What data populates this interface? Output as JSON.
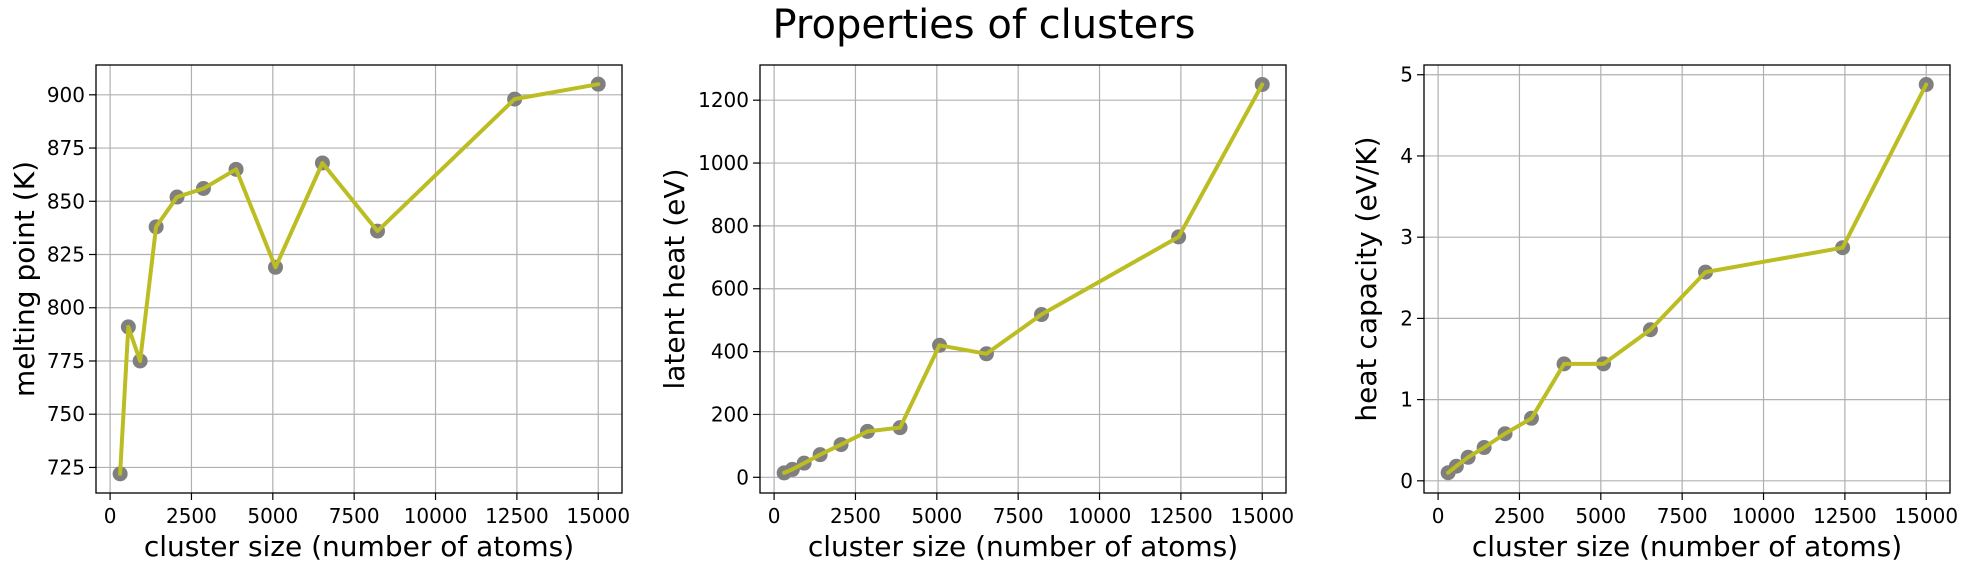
{
  "figure": {
    "title": "Properties of clusters"
  },
  "colors": {
    "line": "#bcbd22",
    "marker": "#7f7f7f",
    "grid": "#b0b0b0",
    "axes": "#000000"
  },
  "chart_data": [
    {
      "type": "line",
      "title": "",
      "xlabel": "cluster size (number of atoms)",
      "ylabel": "melting point (K)",
      "xlim": [
        -433,
        15730
      ],
      "ylim": [
        713,
        914
      ],
      "xticks": [
        0,
        2500,
        5000,
        7500,
        10000,
        12500,
        15000
      ],
      "xtick_labels": [
        "0",
        "2500",
        "5000",
        "7500",
        "10000",
        "12500",
        "15000"
      ],
      "yticks": [
        725,
        750,
        775,
        800,
        825,
        850,
        875,
        900
      ],
      "ytick_labels": [
        "725",
        "750",
        "775",
        "800",
        "825",
        "850",
        "875",
        "900"
      ],
      "grid": true,
      "x": [
        309,
        561,
        923,
        1415,
        2057,
        2869,
        3871,
        5083,
        6525,
        8217,
        12431,
        15000
      ],
      "y": [
        722,
        791,
        775,
        838,
        852,
        856,
        865,
        819,
        868,
        836,
        898,
        905
      ]
    },
    {
      "type": "line",
      "title": "",
      "xlabel": "cluster size (number of atoms)",
      "ylabel": "latent heat (eV)",
      "xlim": [
        -433,
        15730
      ],
      "ylim": [
        -50,
        1312
      ],
      "xticks": [
        0,
        2500,
        5000,
        7500,
        10000,
        12500,
        15000
      ],
      "xtick_labels": [
        "0",
        "2500",
        "5000",
        "7500",
        "10000",
        "12500",
        "15000"
      ],
      "yticks": [
        0,
        200,
        400,
        600,
        800,
        1000,
        1200
      ],
      "ytick_labels": [
        "0",
        "200",
        "400",
        "600",
        "800",
        "1000",
        "1200"
      ],
      "grid": true,
      "x": [
        309,
        561,
        923,
        1415,
        2057,
        2869,
        3871,
        5083,
        6525,
        8217,
        12431,
        15000
      ],
      "y": [
        14,
        25,
        45,
        72,
        104,
        146,
        158,
        420,
        393,
        518,
        765,
        1250
      ]
    },
    {
      "type": "line",
      "title": "",
      "xlabel": "cluster size (number of atoms)",
      "ylabel": "heat capacity (eV/K)",
      "xlim": [
        -433,
        15730
      ],
      "ylim": [
        -0.15,
        5.12
      ],
      "xticks": [
        0,
        2500,
        5000,
        7500,
        10000,
        12500,
        15000
      ],
      "xtick_labels": [
        "0",
        "2500",
        "5000",
        "7500",
        "10000",
        "12500",
        "15000"
      ],
      "yticks": [
        0,
        1,
        2,
        3,
        4,
        5
      ],
      "ytick_labels": [
        "0",
        "1",
        "2",
        "3",
        "4",
        "5"
      ],
      "grid": true,
      "x": [
        309,
        561,
        923,
        1415,
        2057,
        2869,
        3871,
        5083,
        6525,
        8217,
        12431,
        15000
      ],
      "y": [
        0.1,
        0.18,
        0.29,
        0.41,
        0.58,
        0.77,
        1.44,
        1.44,
        1.86,
        2.57,
        2.87,
        4.88
      ]
    }
  ]
}
